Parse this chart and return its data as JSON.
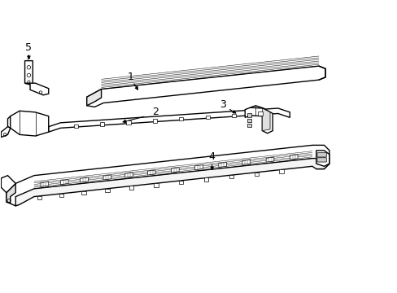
{
  "background_color": "#ffffff",
  "line_color": "#000000",
  "line_width": 1.0,
  "thin_line": 0.5,
  "label_fontsize": 9
}
